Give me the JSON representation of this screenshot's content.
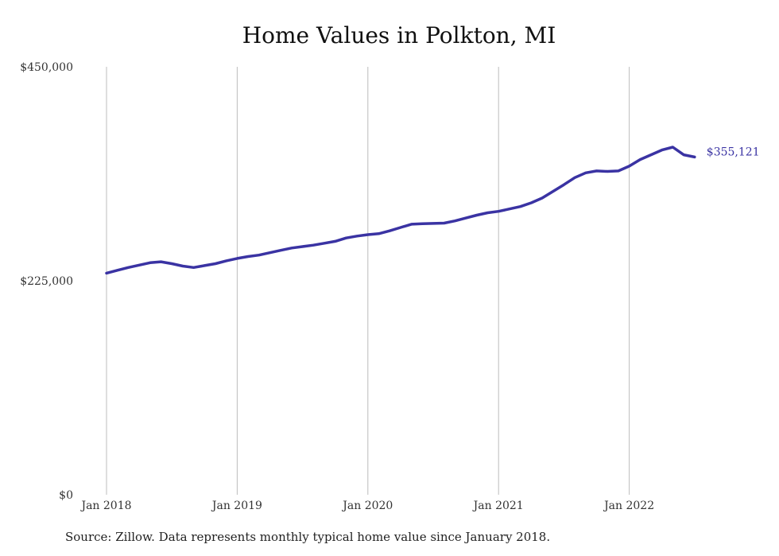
{
  "chart_data": {
    "type": "line",
    "title": "Home Values in Polkton, MI",
    "source": "Source: Zillow. Data represents monthly typical home value since January 2018.",
    "xlabel": "",
    "ylabel": "",
    "ylim": [
      0,
      450000
    ],
    "yticks": [
      0,
      225000,
      450000
    ],
    "ytick_labels": [
      "$0",
      "$225,000",
      "$450,000"
    ],
    "xticks": [
      "2018-01",
      "2019-01",
      "2020-01",
      "2021-01",
      "2022-01"
    ],
    "xtick_labels": [
      "Jan 2018",
      "Jan 2019",
      "Jan 2020",
      "Jan 2021",
      "Jan 2022"
    ],
    "grid": "vertical lines at x ticks",
    "legend": "none",
    "line_color": "#3a33a3",
    "end_label": "$355,121",
    "series": [
      {
        "x": [
          "2018-01",
          "2018-02",
          "2018-03",
          "2018-04",
          "2018-05",
          "2018-06",
          "2018-07",
          "2018-08",
          "2018-09",
          "2018-10",
          "2018-11",
          "2018-12",
          "2019-01",
          "2019-02",
          "2019-03",
          "2019-04",
          "2019-05",
          "2019-06",
          "2019-07",
          "2019-08",
          "2019-09",
          "2019-10",
          "2019-11",
          "2019-12",
          "2020-01",
          "2020-02",
          "2020-03",
          "2020-04",
          "2020-05",
          "2020-06",
          "2020-07",
          "2020-08",
          "2020-09",
          "2020-10",
          "2020-11",
          "2020-12",
          "2021-01",
          "2021-02",
          "2021-03",
          "2021-04",
          "2021-05",
          "2021-06",
          "2021-07",
          "2021-08",
          "2021-09",
          "2021-10",
          "2021-11",
          "2021-12",
          "2022-01",
          "2022-02",
          "2022-03",
          "2022-04",
          "2022-05",
          "2022-06",
          "2022-07"
        ],
        "values": [
          233000,
          236000,
          239000,
          241500,
          244000,
          245000,
          243000,
          240500,
          239000,
          241000,
          243000,
          246000,
          248500,
          250500,
          252000,
          254500,
          257000,
          259500,
          261000,
          262500,
          264500,
          266500,
          270000,
          272000,
          273500,
          274500,
          277500,
          281000,
          284500,
          285000,
          285300,
          285600,
          288000,
          291000,
          294000,
          296500,
          298000,
          300500,
          303000,
          307000,
          312000,
          319000,
          326000,
          333500,
          338500,
          340500,
          340000,
          340500,
          345500,
          352500,
          357500,
          362500,
          365500,
          357500,
          355121
        ]
      }
    ]
  }
}
